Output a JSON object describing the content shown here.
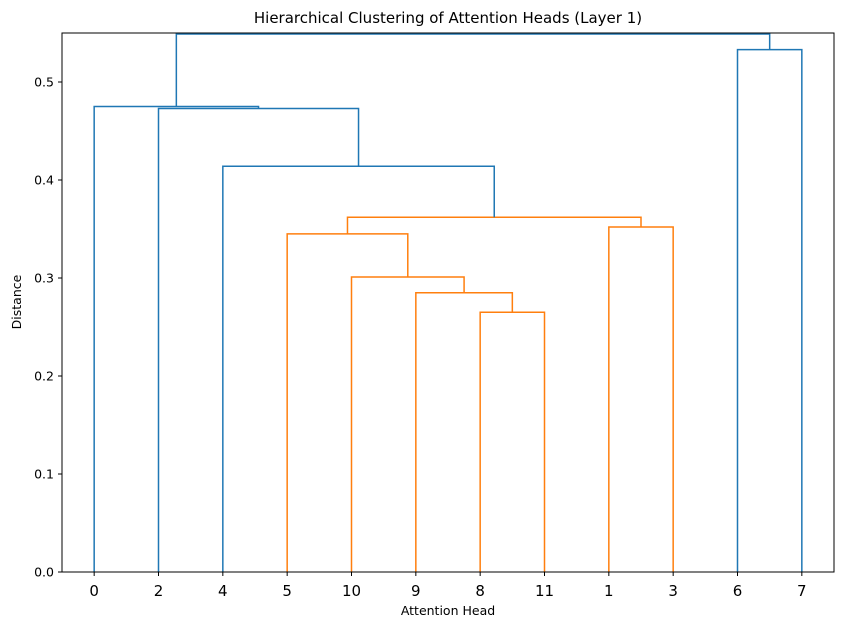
{
  "chart_data": {
    "type": "dendrogram",
    "title": "Hierarchical Clustering of Attention Heads (Layer 1)",
    "xlabel": "Attention Head",
    "ylabel": "Distance",
    "leaf_order": [
      "0",
      "2",
      "4",
      "5",
      "10",
      "9",
      "8",
      "11",
      "1",
      "3",
      "6",
      "7"
    ],
    "ylim": [
      0,
      0.55
    ],
    "yticks": [
      "0.0",
      "0.1",
      "0.2",
      "0.3",
      "0.4",
      "0.5"
    ],
    "merges": [
      {
        "left": "8",
        "right": "11",
        "height": 0.265,
        "color": "#ff7f0e"
      },
      {
        "left": "9",
        "right": "(8,11)",
        "height": 0.285,
        "color": "#ff7f0e"
      },
      {
        "left": "10",
        "right": "(9,8,11)",
        "height": 0.301,
        "color": "#ff7f0e"
      },
      {
        "left": "5",
        "right": "(10,9,8,11)",
        "height": 0.345,
        "color": "#ff7f0e"
      },
      {
        "left": "1",
        "right": "3",
        "height": 0.352,
        "color": "#ff7f0e"
      },
      {
        "left": "(5,10,9,8,11)",
        "right": "(1,3)",
        "height": 0.362,
        "color": "#ff7f0e"
      },
      {
        "left": "4",
        "right": "(5,10,9,8,11,1,3)",
        "height": 0.414,
        "color": "#1f77b4"
      },
      {
        "left": "2",
        "right": "(4,...)",
        "height": 0.473,
        "color": "#1f77b4"
      },
      {
        "left": "0",
        "right": "(2,...)",
        "height": 0.475,
        "color": "#1f77b4"
      },
      {
        "left": "6",
        "right": "7",
        "height": 0.533,
        "color": "#1f77b4"
      },
      {
        "left": "(0,...)",
        "right": "(6,7)",
        "height": 0.549,
        "color": "#1f77b4"
      }
    ],
    "colors": {
      "cluster": "#ff7f0e",
      "above_threshold": "#1f77b4"
    },
    "grid": false
  }
}
